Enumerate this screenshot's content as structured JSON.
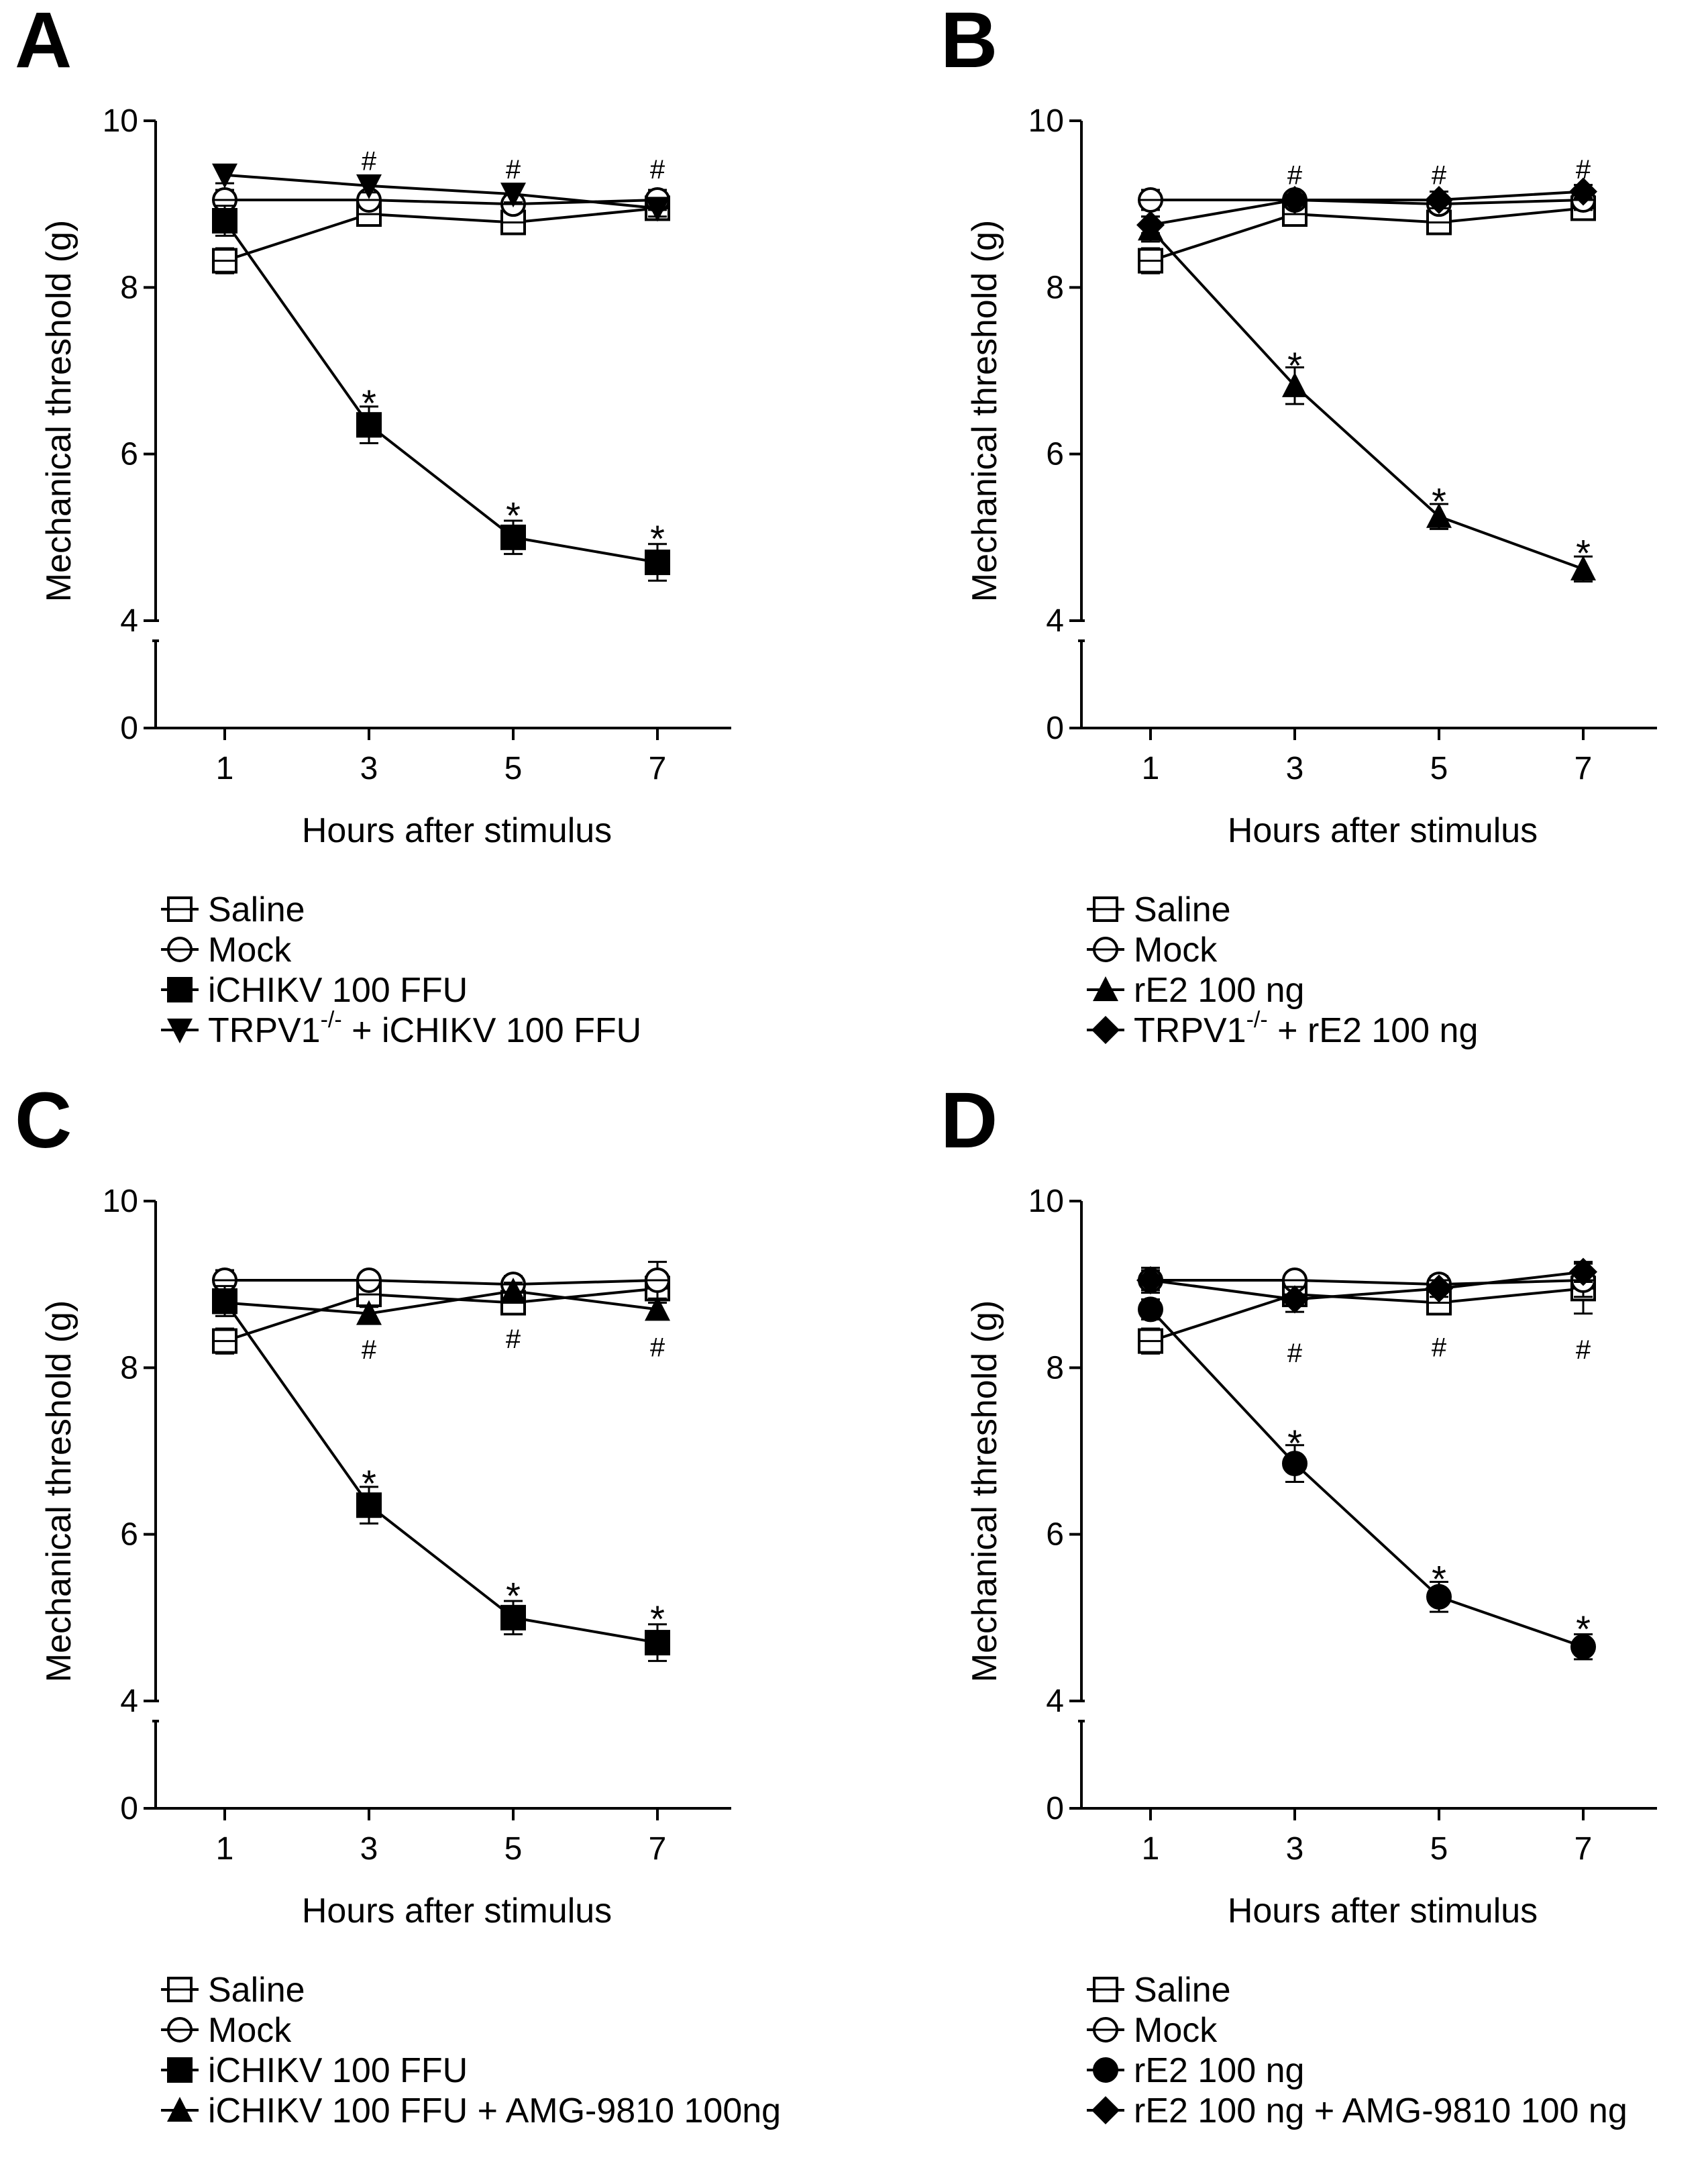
{
  "figure": {
    "panels": [
      "A",
      "B",
      "C",
      "D"
    ]
  },
  "chart_data": [
    {
      "panel": "A",
      "type": "line",
      "xlabel": "Hours after stimulus",
      "ylabel": "Mechanical threshold (g)",
      "x": [
        1,
        3,
        5,
        7
      ],
      "x_ticks": [
        "1",
        "3",
        "5",
        "7"
      ],
      "y_ticks": [
        "0",
        "4",
        "6",
        "8",
        "10"
      ],
      "ylim": [
        0,
        10
      ],
      "axis_break": [
        0,
        4
      ],
      "legend_position": "below",
      "series": [
        {
          "name": "Saline",
          "marker": "square-open",
          "values": [
            8.32,
            8.88,
            8.78,
            8.95
          ],
          "errors": [
            0.15,
            0.08,
            0.1,
            0.06
          ]
        },
        {
          "name": "Mock",
          "marker": "circle-open",
          "values": [
            9.05,
            9.05,
            9.0,
            9.05
          ],
          "errors": [
            0.12,
            0.08,
            0.1,
            0.12
          ]
        },
        {
          "name": "iCHIKV 100 FFU",
          "marker": "square-filled",
          "values": [
            8.8,
            6.35,
            5.0,
            4.7
          ],
          "errors": [
            0.18,
            0.22,
            0.2,
            0.22
          ]
        },
        {
          "name": "TRPV1",
          "name_sup": "-/-",
          "name_suffix": " + iCHIKV 100 FFU",
          "marker": "triangle-down-filled",
          "values": [
            9.35,
            9.22,
            9.12,
            8.95
          ],
          "errors": [
            0.1,
            0.08,
            0.1,
            0.1
          ]
        }
      ],
      "annotations": [
        {
          "text": "#",
          "x": 3,
          "y": 9.52
        },
        {
          "text": "#",
          "x": 5,
          "y": 9.42
        },
        {
          "text": "#",
          "x": 7,
          "y": 9.42
        },
        {
          "text": "*",
          "x": 3,
          "y": 6.7
        },
        {
          "text": "*",
          "x": 5,
          "y": 5.35
        },
        {
          "text": "*",
          "x": 7,
          "y": 5.07
        }
      ]
    },
    {
      "panel": "B",
      "type": "line",
      "xlabel": "Hours after stimulus",
      "ylabel": "Mechanical threshold (g)",
      "x": [
        1,
        3,
        5,
        7
      ],
      "x_ticks": [
        "1",
        "3",
        "5",
        "7"
      ],
      "y_ticks": [
        "0",
        "4",
        "6",
        "8",
        "10"
      ],
      "ylim": [
        0,
        10
      ],
      "axis_break": [
        0,
        4
      ],
      "legend_position": "below",
      "series": [
        {
          "name": "Saline",
          "marker": "square-open",
          "values": [
            8.32,
            8.88,
            8.78,
            8.95
          ],
          "errors": [
            0.15,
            0.08,
            0.1,
            0.06
          ]
        },
        {
          "name": "Mock",
          "marker": "circle-open",
          "values": [
            9.05,
            9.05,
            9.0,
            9.05
          ],
          "errors": [
            0.12,
            0.08,
            0.1,
            0.12
          ]
        },
        {
          "name": "rE2 100 ng",
          "marker": "triangle-up-filled",
          "values": [
            8.7,
            6.82,
            5.25,
            4.62
          ],
          "errors": [
            0.15,
            0.22,
            0.15,
            0.15
          ]
        },
        {
          "name": "TRPV1",
          "name_sup": "-/-",
          "name_suffix": " + rE2 100 ng",
          "marker": "diamond-filled",
          "values": [
            8.75,
            9.05,
            9.05,
            9.15
          ],
          "errors": [
            0.1,
            0.06,
            0.1,
            0.08
          ]
        }
      ],
      "annotations": [
        {
          "text": "#",
          "x": 3,
          "y": 9.35
        },
        {
          "text": "#",
          "x": 5,
          "y": 9.35
        },
        {
          "text": "#",
          "x": 7,
          "y": 9.42
        },
        {
          "text": "*",
          "x": 3,
          "y": 7.15
        },
        {
          "text": "*",
          "x": 5,
          "y": 5.52
        },
        {
          "text": "*",
          "x": 7,
          "y": 4.9
        }
      ]
    },
    {
      "panel": "C",
      "type": "line",
      "xlabel": "Hours after stimulus",
      "ylabel": "Mechanical threshold (g)",
      "x": [
        1,
        3,
        5,
        7
      ],
      "x_ticks": [
        "1",
        "3",
        "5",
        "7"
      ],
      "y_ticks": [
        "0",
        "4",
        "6",
        "8",
        "10"
      ],
      "ylim": [
        0,
        10
      ],
      "axis_break": [
        0,
        4
      ],
      "legend_position": "below",
      "series": [
        {
          "name": "Saline",
          "marker": "square-open",
          "values": [
            8.32,
            8.88,
            8.78,
            8.95
          ],
          "errors": [
            0.15,
            0.08,
            0.1,
            0.08
          ]
        },
        {
          "name": "Mock",
          "marker": "circle-open",
          "values": [
            9.05,
            9.05,
            9.0,
            9.05
          ],
          "errors": [
            0.12,
            0.08,
            0.1,
            0.22
          ]
        },
        {
          "name": "iCHIKV 100 FFU",
          "marker": "square-filled",
          "values": [
            8.8,
            6.35,
            5.0,
            4.7
          ],
          "errors": [
            0.18,
            0.22,
            0.2,
            0.22
          ]
        },
        {
          "name": "iCHIKV 100 FFU + AMG-9810 100ng",
          "marker": "triangle-up-filled",
          "values": [
            8.78,
            8.65,
            8.92,
            8.7
          ],
          "errors": [
            0.1,
            0.08,
            0.1,
            0.08
          ]
        }
      ],
      "annotations": [
        {
          "text": "#",
          "x": 3,
          "y": 8.22
        },
        {
          "text": "#",
          "x": 5,
          "y": 8.35
        },
        {
          "text": "#",
          "x": 7,
          "y": 8.25
        },
        {
          "text": "*",
          "x": 3,
          "y": 6.7
        },
        {
          "text": "*",
          "x": 5,
          "y": 5.35
        },
        {
          "text": "*",
          "x": 7,
          "y": 5.07
        }
      ]
    },
    {
      "panel": "D",
      "type": "line",
      "xlabel": "Hours after stimulus",
      "ylabel": "Mechanical threshold (g)",
      "x": [
        1,
        3,
        5,
        7
      ],
      "x_ticks": [
        "1",
        "3",
        "5",
        "7"
      ],
      "y_ticks": [
        "0",
        "4",
        "6",
        "8",
        "10"
      ],
      "ylim": [
        0,
        10
      ],
      "axis_break": [
        0,
        4
      ],
      "legend_position": "below",
      "series": [
        {
          "name": "Saline",
          "marker": "square-open",
          "values": [
            8.32,
            8.88,
            8.78,
            8.95
          ],
          "errors": [
            0.15,
            0.08,
            0.1,
            0.3
          ]
        },
        {
          "name": "Mock",
          "marker": "circle-open",
          "values": [
            9.05,
            9.05,
            9.0,
            9.05
          ],
          "errors": [
            0.12,
            0.08,
            0.1,
            0.2
          ]
        },
        {
          "name": "rE2 100 ng",
          "marker": "circle-filled",
          "values": [
            8.7,
            6.85,
            5.25,
            4.65
          ],
          "errors": [
            0.12,
            0.22,
            0.18,
            0.15
          ]
        },
        {
          "name": "rE2 100 ng + AMG-9810 100 ng",
          "marker": "diamond-filled",
          "values": [
            9.05,
            8.82,
            8.95,
            9.15
          ],
          "errors": [
            0.15,
            0.15,
            0.1,
            0.12
          ]
        }
      ],
      "annotations": [
        {
          "text": "#",
          "x": 3,
          "y": 8.18
        },
        {
          "text": "#",
          "x": 5,
          "y": 8.25
        },
        {
          "text": "#",
          "x": 7,
          "y": 8.22
        },
        {
          "text": "*",
          "x": 3,
          "y": 7.18
        },
        {
          "text": "*",
          "x": 5,
          "y": 5.55
        },
        {
          "text": "*",
          "x": 7,
          "y": 4.95
        }
      ]
    }
  ]
}
